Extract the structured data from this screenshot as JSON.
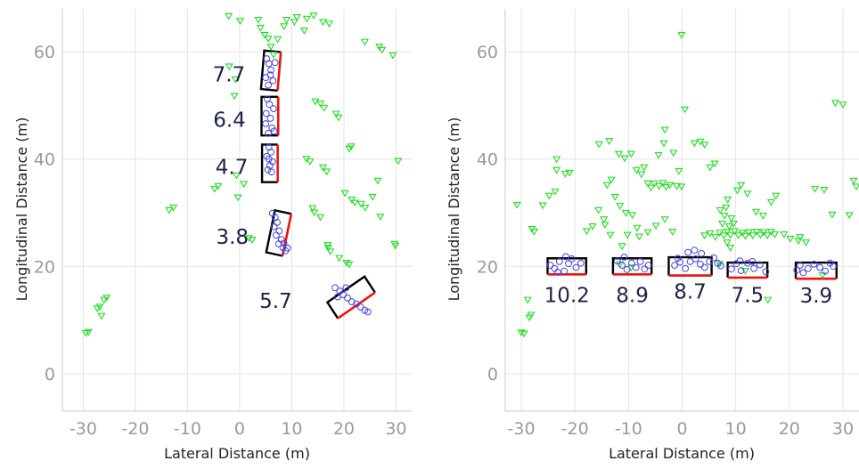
{
  "chart_data": [
    {
      "type": "scatter",
      "title": "",
      "xlabel": "Lateral Distance (m)",
      "ylabel": "Longitudinal Distance (m)",
      "xlim": [
        -34,
        33
      ],
      "ylim": [
        -7,
        68
      ],
      "xticks": [
        -30,
        -20,
        -10,
        0,
        10,
        20,
        30
      ],
      "yticks": [
        0,
        20,
        40,
        60
      ],
      "grid": true,
      "radar_points": [
        [
          -29.5,
          7.6
        ],
        [
          -29,
          7.8
        ],
        [
          -27.3,
          12.2
        ],
        [
          -26.8,
          12.5
        ],
        [
          -26,
          13.8
        ],
        [
          -25.5,
          14.2
        ],
        [
          -26.5,
          10.8
        ],
        [
          -13.5,
          30.5
        ],
        [
          -12.7,
          31.0
        ],
        [
          -4.8,
          34.5
        ],
        [
          -4.1,
          35.0
        ],
        [
          -0.3,
          32.9
        ],
        [
          0.8,
          35.4
        ],
        [
          -0.6,
          37.0
        ],
        [
          1.8,
          25.3
        ],
        [
          2.4,
          25.0
        ],
        [
          -1.0,
          51.8
        ],
        [
          -0.8,
          54.9
        ],
        [
          -2.0,
          57.3
        ],
        [
          -2.1,
          66.7
        ],
        [
          0.1,
          65.8
        ],
        [
          3.6,
          66.0
        ],
        [
          4.0,
          64.5
        ],
        [
          4.8,
          63.2
        ],
        [
          5.5,
          62.5
        ],
        [
          6.0,
          61.0
        ],
        [
          6.5,
          59.5
        ],
        [
          7.3,
          62.4
        ],
        [
          8.5,
          64.8
        ],
        [
          9.0,
          66.0
        ],
        [
          10.5,
          65.6
        ],
        [
          11.0,
          66.5
        ],
        [
          12.4,
          64.0
        ],
        [
          12.9,
          66.2
        ],
        [
          14.2,
          66.8
        ],
        [
          16.0,
          65.6
        ],
        [
          17.2,
          65.3
        ],
        [
          14.5,
          50.8
        ],
        [
          15.5,
          50.4
        ],
        [
          16.2,
          49.6
        ],
        [
          18.5,
          48.5
        ],
        [
          19.0,
          47.8
        ],
        [
          12.8,
          40.1
        ],
        [
          13.5,
          39.6
        ],
        [
          16.0,
          38.5
        ],
        [
          16.7,
          37.7
        ],
        [
          21.0,
          42.0
        ],
        [
          21.4,
          42.4
        ],
        [
          14.0,
          30.9
        ],
        [
          14.3,
          30.1
        ],
        [
          15.5,
          29.2
        ],
        [
          16.9,
          24.0
        ],
        [
          17.0,
          23.5
        ],
        [
          17.4,
          22.8
        ],
        [
          19.1,
          21.6
        ],
        [
          20.5,
          20.7
        ],
        [
          21.0,
          20.4
        ],
        [
          20.2,
          33.7
        ],
        [
          21.5,
          32.5
        ],
        [
          22.1,
          31.9
        ],
        [
          23.3,
          31.7
        ],
        [
          24.1,
          31.0
        ],
        [
          25.5,
          33.0
        ],
        [
          26.5,
          36.0
        ],
        [
          27.0,
          29.3
        ],
        [
          29.7,
          24.2
        ],
        [
          29.9,
          23.9
        ],
        [
          30.4,
          39.7
        ],
        [
          24.0,
          61.9
        ],
        [
          26.8,
          61.0
        ],
        [
          27.3,
          60.4
        ],
        [
          29.4,
          59.4
        ]
      ],
      "lidar_points": [
        [
          5.2,
          58.7
        ],
        [
          5.6,
          57.8
        ],
        [
          6.0,
          56.6
        ],
        [
          5.0,
          55.2
        ],
        [
          6.4,
          54.6
        ],
        [
          5.5,
          53.8
        ],
        [
          6.8,
          58.0
        ],
        [
          5.9,
          55.7
        ],
        [
          5.3,
          51.2
        ],
        [
          5.7,
          50.2
        ],
        [
          6.5,
          49.4
        ],
        [
          5.1,
          48.5
        ],
        [
          5.9,
          47.6
        ],
        [
          5.0,
          46.6
        ],
        [
          6.2,
          45.8
        ],
        [
          6.6,
          45.2
        ],
        [
          5.5,
          44.8
        ],
        [
          5.6,
          42.2
        ],
        [
          6.0,
          41.3
        ],
        [
          5.2,
          40.5
        ],
        [
          6.3,
          39.5
        ],
        [
          5.8,
          38.8
        ],
        [
          5.4,
          38.0
        ],
        [
          6.1,
          37.6
        ],
        [
          5.6,
          40.0
        ],
        [
          6.3,
          29.9
        ],
        [
          6.8,
          29.1
        ],
        [
          7.2,
          28.2
        ],
        [
          6.6,
          27.4
        ],
        [
          7.6,
          26.6
        ],
        [
          7.0,
          25.8
        ],
        [
          8.0,
          25.0
        ],
        [
          7.5,
          24.2
        ],
        [
          8.3,
          23.5
        ],
        [
          8.8,
          22.9
        ],
        [
          9.2,
          23.4
        ],
        [
          8.5,
          24.3
        ],
        [
          18.3,
          16.0
        ],
        [
          19.2,
          15.4
        ],
        [
          19.9,
          14.7
        ],
        [
          20.7,
          14.1
        ],
        [
          21.5,
          13.4
        ],
        [
          22.4,
          13.0
        ],
        [
          23.2,
          12.4
        ],
        [
          24.0,
          11.8
        ],
        [
          24.6,
          11.5
        ],
        [
          20.4,
          16.0
        ],
        [
          18.8,
          14.3
        ]
      ],
      "boxes": [
        {
          "label": "7.7",
          "center": [
            6.0,
            56.5
          ],
          "length": 7.2,
          "width": 3.2,
          "angle_deg": 5
        },
        {
          "label": "6.4",
          "center": [
            5.8,
            48.0
          ],
          "length": 7.2,
          "width": 3.2,
          "angle_deg": 0
        },
        {
          "label": "4.7",
          "center": [
            5.8,
            39.2
          ],
          "length": 7.0,
          "width": 3.0,
          "angle_deg": 0
        },
        {
          "label": "3.8",
          "center": [
            7.5,
            26.2
          ],
          "length": 8.0,
          "width": 3.2,
          "angle_deg": 12
        },
        {
          "label": "5.7",
          "center": [
            21.4,
            14.2
          ],
          "length": 8.6,
          "width": 3.6,
          "angle_deg": 56
        }
      ]
    },
    {
      "type": "scatter",
      "title": "",
      "xlabel": "Lateral Distance (m)",
      "ylabel": "Longitudinal Distance (m)",
      "xlim": [
        -33,
        33
      ],
      "ylim": [
        -7,
        68
      ],
      "xticks": [
        -30,
        -20,
        -10,
        0,
        10,
        20,
        30
      ],
      "yticks": [
        0,
        20,
        40,
        60
      ],
      "grid": true,
      "radar_points": [
        [
          -30.0,
          7.7
        ],
        [
          -29.5,
          7.5
        ],
        [
          -28.5,
          10.5
        ],
        [
          -28.2,
          11.0
        ],
        [
          -28.8,
          13.8
        ],
        [
          -27.6,
          26.5
        ],
        [
          -28.0,
          27.0
        ],
        [
          -30.8,
          31.5
        ],
        [
          -23.4,
          40.0
        ],
        [
          -21.8,
          37.3
        ],
        [
          -21.0,
          37.5
        ],
        [
          -17.8,
          26.6
        ],
        [
          -16.7,
          27.5
        ],
        [
          -14.6,
          28.8
        ],
        [
          -15.6,
          30.5
        ],
        [
          -14.0,
          35.2
        ],
        [
          -13.2,
          36.2
        ],
        [
          -15.5,
          42.8
        ],
        [
          -13.6,
          43.4
        ],
        [
          -11.8,
          41.0
        ],
        [
          -10.7,
          40.2
        ],
        [
          -9.5,
          41.0
        ],
        [
          -8.5,
          38.0
        ],
        [
          -7.6,
          37.2
        ],
        [
          -7.1,
          38.5
        ],
        [
          -6.4,
          35.5
        ],
        [
          -5.8,
          34.7
        ],
        [
          -5.2,
          35.5
        ],
        [
          -4.3,
          35.0
        ],
        [
          -3.6,
          35.6
        ],
        [
          -3.0,
          34.8
        ],
        [
          -2.3,
          35.2
        ],
        [
          -1.0,
          35.0
        ],
        [
          -0.1,
          34.9
        ],
        [
          -4.4,
          40.8
        ],
        [
          -3.4,
          43.0
        ],
        [
          -3.2,
          45.5
        ],
        [
          -1.6,
          41.2
        ],
        [
          -0.6,
          37.8
        ],
        [
          0.5,
          49.3
        ],
        [
          -0.1,
          63.2
        ],
        [
          2.3,
          43.0
        ],
        [
          3.4,
          43.3
        ],
        [
          4.2,
          42.7
        ],
        [
          5.2,
          38.5
        ],
        [
          6.1,
          39.2
        ],
        [
          -12.5,
          33.0
        ],
        [
          -11.6,
          31.3
        ],
        [
          -10.5,
          30.0
        ],
        [
          -9.3,
          29.6
        ],
        [
          -10.2,
          25.9
        ],
        [
          -11.2,
          23.8
        ],
        [
          -8.4,
          27.2
        ],
        [
          -6.4,
          26.4
        ],
        [
          -4.9,
          27.6
        ],
        [
          -3.2,
          28.8
        ],
        [
          -8.0,
          25.6
        ],
        [
          -11.6,
          20.4
        ],
        [
          -9.5,
          19.8
        ],
        [
          -23.7,
          34.0
        ],
        [
          -24.8,
          33.2
        ],
        [
          -23.4,
          38.0
        ],
        [
          -26.0,
          31.4
        ],
        [
          -14.4,
          27.8
        ],
        [
          -13.4,
          25.9
        ],
        [
          -1.8,
          26.5
        ],
        [
          4.2,
          25.8
        ],
        [
          5.2,
          26.2
        ],
        [
          6.2,
          25.5
        ],
        [
          7.0,
          26.3
        ],
        [
          7.8,
          25.8
        ],
        [
          8.4,
          26.5
        ],
        [
          9.0,
          25.9
        ],
        [
          9.8,
          26.6
        ],
        [
          10.5,
          25.8
        ],
        [
          11.2,
          26.3
        ],
        [
          11.8,
          25.7
        ],
        [
          12.5,
          26.4
        ],
        [
          13.2,
          25.8
        ],
        [
          13.9,
          26.5
        ],
        [
          14.6,
          25.9
        ],
        [
          15.2,
          26.4
        ],
        [
          15.9,
          25.8
        ],
        [
          16.6,
          26.5
        ],
        [
          17.3,
          26.0
        ],
        [
          7.5,
          28.0
        ],
        [
          7.9,
          29.5
        ],
        [
          8.2,
          31.0
        ],
        [
          8.5,
          32.5
        ],
        [
          8.8,
          27.5
        ],
        [
          9.2,
          29.0
        ],
        [
          7.1,
          30.5
        ],
        [
          9.6,
          28.0
        ],
        [
          8.4,
          24.5
        ],
        [
          9.0,
          23.5
        ],
        [
          10.3,
          34.2
        ],
        [
          11.0,
          35.2
        ],
        [
          12.2,
          33.6
        ],
        [
          13.8,
          30.2
        ],
        [
          15.1,
          29.5
        ],
        [
          16.6,
          32.0
        ],
        [
          17.5,
          33.2
        ],
        [
          19.0,
          26.0
        ],
        [
          20.2,
          25.2
        ],
        [
          21.7,
          24.8
        ],
        [
          22.0,
          25.5
        ],
        [
          7.0,
          20.5
        ],
        [
          11.8,
          19.2
        ],
        [
          16.0,
          13.8
        ],
        [
          23.1,
          24.5
        ],
        [
          24.8,
          34.5
        ],
        [
          26.5,
          34.3
        ],
        [
          28.0,
          29.7
        ],
        [
          28.6,
          50.5
        ],
        [
          30.0,
          50.2
        ],
        [
          32.0,
          36.0
        ],
        [
          32.5,
          34.9
        ],
        [
          26.2,
          18.4
        ],
        [
          31.2,
          29.6
        ]
      ],
      "lidar_points": [
        [
          -24.6,
          20.2
        ],
        [
          -23.8,
          19.6
        ],
        [
          -22.9,
          20.9
        ],
        [
          -22.0,
          19.1
        ],
        [
          -21.2,
          20.5
        ],
        [
          -20.6,
          21.4
        ],
        [
          -19.8,
          19.8
        ],
        [
          -18.9,
          20.6
        ],
        [
          -21.7,
          21.8
        ],
        [
          -23.2,
          18.9
        ],
        [
          -12.1,
          21.0
        ],
        [
          -11.2,
          20.2
        ],
        [
          -10.3,
          19.4
        ],
        [
          -9.4,
          20.6
        ],
        [
          -8.6,
          19.8
        ],
        [
          -7.8,
          20.9
        ],
        [
          -7.0,
          19.5
        ],
        [
          -6.3,
          20.2
        ],
        [
          -10.8,
          21.7
        ],
        [
          -1.4,
          20.2
        ],
        [
          -0.4,
          20.8
        ],
        [
          0.6,
          19.6
        ],
        [
          1.5,
          20.9
        ],
        [
          2.5,
          21.4
        ],
        [
          3.4,
          20.4
        ],
        [
          4.2,
          19.8
        ],
        [
          5.1,
          20.9
        ],
        [
          5.9,
          21.6
        ],
        [
          6.6,
          20.6
        ],
        [
          7.2,
          20.1
        ],
        [
          1.1,
          22.6
        ],
        [
          2.3,
          23.0
        ],
        [
          3.6,
          22.4
        ],
        [
          -0.8,
          21.5
        ],
        [
          9.2,
          19.5
        ],
        [
          10.1,
          20.5
        ],
        [
          11.0,
          19.2
        ],
        [
          12.2,
          20.6
        ],
        [
          13.4,
          19.6
        ],
        [
          14.5,
          20.3
        ],
        [
          15.6,
          19.0
        ],
        [
          10.8,
          21.0
        ],
        [
          13.1,
          20.9
        ],
        [
          21.4,
          19.3
        ],
        [
          22.6,
          18.8
        ],
        [
          23.5,
          19.6
        ],
        [
          24.6,
          20.4
        ],
        [
          25.7,
          19.8
        ],
        [
          26.7,
          19.1
        ],
        [
          27.6,
          20.6
        ],
        [
          28.2,
          20.0
        ],
        [
          22.0,
          20.2
        ]
      ],
      "boxes": [
        {
          "label": "10.2",
          "center": [
            -21.5,
            20.0
          ],
          "length": 7.2,
          "width": 3.0,
          "angle_deg": 90
        },
        {
          "label": "8.9",
          "center": [
            -9.3,
            20.0
          ],
          "length": 7.2,
          "width": 3.0,
          "angle_deg": 90
        },
        {
          "label": "8.7",
          "center": [
            1.5,
            20.0
          ],
          "length": 8.0,
          "width": 3.4,
          "angle_deg": 90
        },
        {
          "label": "7.5",
          "center": [
            12.2,
            19.3
          ],
          "length": 7.4,
          "width": 2.8,
          "angle_deg": 90
        },
        {
          "label": "3.9",
          "center": [
            25.0,
            19.2
          ],
          "length": 7.6,
          "width": 3.0,
          "angle_deg": 90
        }
      ]
    }
  ]
}
